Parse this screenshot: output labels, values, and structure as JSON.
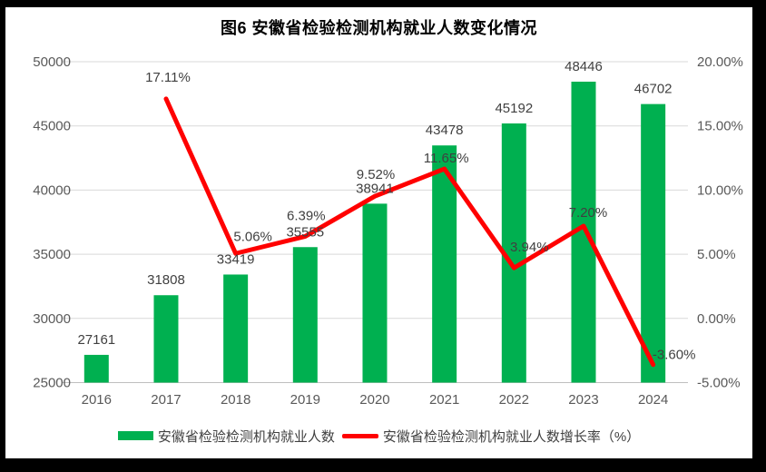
{
  "title": "图6  安徽省检验检测机构就业人数变化情况",
  "colors": {
    "bar": "#00B050",
    "line": "#FF0000",
    "grid": "#D9D9D9",
    "baseline": "#BFBFBF",
    "axis_text": "#595959",
    "label_text": "#404040",
    "frame": "#000000"
  },
  "legend": [
    {
      "label": "安徽省检验检测机构就业人数",
      "swatch": "bar-swatch",
      "color": "#00B050"
    },
    {
      "label": "安徽省检验检测机构就业人数增长率（%）",
      "swatch": "line-swatch",
      "color": "#FF0000"
    }
  ],
  "chart_data": {
    "type": "bar",
    "subtype": "combo-bar-line",
    "title": "图6  安徽省检验检测机构就业人数变化情况",
    "categories": [
      "2016",
      "2017",
      "2018",
      "2019",
      "2020",
      "2021",
      "2022",
      "2023",
      "2024"
    ],
    "series": [
      {
        "name": "安徽省检验检测机构就业人数",
        "type": "bar",
        "axis": "left",
        "values": [
          27161,
          31808,
          33419,
          35555,
          38941,
          43478,
          45192,
          48446,
          46702
        ]
      },
      {
        "name": "安徽省检验检测机构就业人数增长率（%）",
        "type": "line",
        "axis": "right",
        "values": [
          null,
          17.11,
          5.06,
          6.39,
          9.52,
          11.65,
          3.94,
          7.2,
          -3.6
        ],
        "labels": [
          null,
          "17.11%",
          "5.06%",
          "6.39%",
          "9.52%",
          "11.65%",
          "3.94%",
          "7.20%",
          "-3.60%"
        ]
      }
    ],
    "left_axis": {
      "min": 25000,
      "max": 50000,
      "step": 5000,
      "ticks": [
        "50000",
        "45000",
        "40000",
        "35000",
        "30000",
        "25000"
      ]
    },
    "right_axis": {
      "min": -5,
      "max": 20,
      "step": 5,
      "ticks": [
        "20.00%",
        "15.00%",
        "10.00%",
        "5.00%",
        "0.00%",
        "-5.00%"
      ]
    },
    "grid": true,
    "legend_position": "bottom"
  }
}
